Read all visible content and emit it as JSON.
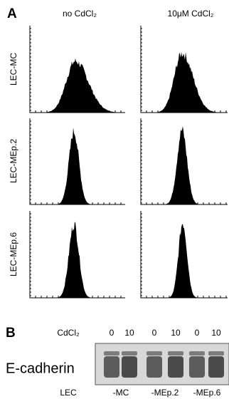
{
  "panel_a": {
    "label": "A",
    "columns": [
      "no CdCl₂",
      "10μM CdCl₂"
    ],
    "rows": [
      "LEC-MC",
      "LEC-MEp.2",
      "LEC-MEp.6"
    ]
  },
  "panel_b": {
    "label": "B",
    "treatment_label": "CdCl₂",
    "doses": [
      0,
      10,
      0,
      10,
      0,
      10
    ],
    "row_label": "E-cadherin",
    "lane_group_label": "LEC",
    "lanes": [
      "-MC",
      "-MEp.2",
      "-MEp.6"
    ]
  }
}
